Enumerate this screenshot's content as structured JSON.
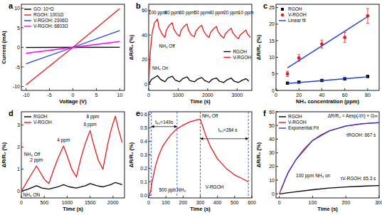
{
  "chart_data": [
    {
      "type": "line",
      "title": "a",
      "xlabel": "Voltage (V)",
      "ylabel": "Current (mA)",
      "xlim": [
        -11,
        11
      ],
      "ylim": [
        -11,
        11
      ],
      "xticks": [
        -10,
        -5,
        0,
        5,
        10
      ],
      "yticks": [
        -10,
        -5,
        0,
        5,
        10
      ],
      "legend": "upper left",
      "series": [
        {
          "name": "GO: 10⁹Ω",
          "color": "#000000",
          "x": [
            -10,
            0,
            10
          ],
          "values": [
            -0.02,
            0,
            0.02
          ]
        },
        {
          "name": "RGOH: 1001Ω",
          "color": "#e8191c",
          "x": [
            -10,
            0,
            10
          ],
          "values": [
            -9.6,
            0,
            9.9
          ]
        },
        {
          "name": "V-RGOH: 2306Ω",
          "color": "#1f3fd8",
          "x": [
            -10,
            0,
            10
          ],
          "values": [
            -4.2,
            0,
            4.3
          ]
        },
        {
          "name": "V-RGOH: 6803Ω",
          "color": "#ff00ff",
          "x": [
            -10,
            0,
            10
          ],
          "values": [
            -1.5,
            0,
            1.5
          ]
        }
      ]
    },
    {
      "type": "line",
      "title": "b",
      "xlabel": "Time (s)",
      "ylabel": "ΔR/R₀ (%)",
      "xlim": [
        0,
        3500
      ],
      "ylim": [
        -5,
        65
      ],
      "xticks": [
        0,
        1000,
        2000,
        3000
      ],
      "yticks": [
        0,
        20,
        40,
        60
      ],
      "legend": "center right",
      "annotations": [
        "100 ppm",
        "80 ppm",
        "60 ppm",
        "50 ppm",
        "40 ppm",
        "20 ppm",
        "10 ppm",
        "NH₃ Off",
        "NH₃ On"
      ],
      "series": [
        {
          "name": "RGOH",
          "color": "#000000",
          "x": [
            0,
            100,
            300,
            400,
            550,
            650,
            800,
            900,
            1050,
            1150,
            1300,
            1400,
            1550,
            1650,
            1800,
            1900,
            2050,
            2150,
            2300,
            2400,
            2550,
            2650,
            2800,
            2900,
            3050,
            3150,
            3300,
            3400
          ],
          "values": [
            0,
            4,
            7,
            4,
            2,
            5,
            6.5,
            3.5,
            2,
            4.5,
            6,
            3,
            2,
            4,
            5.5,
            3,
            1.5,
            4,
            5,
            2.5,
            1.5,
            3.5,
            5,
            2.5,
            1.5,
            3,
            4.5,
            2.5
          ]
        },
        {
          "name": "V-RGOH",
          "color": "#e8191c",
          "x": [
            0,
            50,
            120,
            200,
            300,
            350,
            450,
            550,
            600,
            700,
            800,
            850,
            950,
            1050,
            1100,
            1200,
            1300,
            1350,
            1450,
            1550,
            1600,
            1700,
            1800,
            1850,
            1950,
            2050,
            2100,
            2200,
            2300,
            2350,
            2450,
            2550,
            2600,
            2700,
            2800,
            2850,
            2950,
            3050,
            3100,
            3200,
            3300,
            3350,
            3450
          ],
          "values": [
            0,
            25,
            42,
            50,
            53,
            46,
            41,
            38,
            44,
            48,
            50,
            45,
            41,
            39,
            44,
            47,
            49,
            44,
            40,
            38.5,
            43,
            46,
            48,
            44,
            40,
            38,
            42,
            45,
            47,
            43,
            39.5,
            37.5,
            41,
            43.5,
            45.5,
            42,
            39,
            37,
            40,
            42,
            44,
            41,
            38
          ]
        }
      ]
    },
    {
      "type": "scatter",
      "title": "c",
      "xlabel": "NH₃ concentration (ppm)",
      "ylabel": "ΔR/R₀ (%)",
      "xlim": [
        0,
        90
      ],
      "ylim": [
        0,
        26
      ],
      "xticks": [
        0,
        20,
        40,
        60,
        80
      ],
      "yticks": [
        0,
        5,
        10,
        15,
        20,
        25
      ],
      "legend": "upper left",
      "series": [
        {
          "name": "RGOH",
          "color": "#000000",
          "type": "scatter",
          "marker": "square",
          "x": [
            10,
            20,
            40,
            60,
            80
          ],
          "values": [
            2.2,
            2.5,
            3.0,
            3.5,
            4.2
          ],
          "errors": [
            0.2,
            0.2,
            0.3,
            0.3,
            0.3
          ]
        },
        {
          "name": "V-RGOH",
          "color": "#e8191c",
          "type": "scatter",
          "marker": "circle",
          "x": [
            10,
            20,
            40,
            60,
            80
          ],
          "values": [
            5,
            9.8,
            14,
            16,
            22.5
          ],
          "errors": [
            0.8,
            1,
            1.2,
            1.5,
            2.2
          ]
        },
        {
          "name": "Linear fit",
          "color": "#1f3fd8",
          "type": "line",
          "line_style": "solid",
          "x": [
            10,
            80
          ],
          "values": [
            6.8,
            22.3
          ]
        },
        {
          "name": "Linear fit",
          "color": "#1f3fd8",
          "type": "line",
          "line_style": "solid",
          "x": [
            10,
            80
          ],
          "values": [
            2.1,
            4.1
          ]
        }
      ]
    },
    {
      "type": "line",
      "title": "d",
      "xlabel": "Time (s)",
      "ylabel": "ΔR/R₀ (%)",
      "xlim": [
        0,
        2250
      ],
      "ylim": [
        -0.3,
        3.6
      ],
      "xticks": [
        0,
        500,
        1000,
        1500,
        2000
      ],
      "yticks": [
        0,
        1,
        2,
        3
      ],
      "legend": "upper left",
      "annotations": [
        "2 ppm",
        "4 ppm",
        "6 ppm",
        "8 ppm",
        "NH₃ Off",
        "NH₃ ON"
      ],
      "series": [
        {
          "name": "RGOH",
          "color": "#000000",
          "x": [
            0,
            150,
            330,
            450,
            600,
            800,
            920,
            1050,
            1200,
            1400,
            1500,
            1650,
            1780,
            1950,
            2050,
            2200
          ],
          "values": [
            0,
            0.1,
            0.25,
            0.15,
            0.1,
            0.2,
            0.3,
            0.2,
            0.15,
            0.25,
            0.35,
            0.25,
            0.2,
            0.3,
            0.4,
            0.3
          ]
        },
        {
          "name": "V-RGOH",
          "color": "#e8191c",
          "x": [
            0,
            100,
            200,
            330,
            400,
            500,
            600,
            700,
            800,
            920,
            1000,
            1100,
            1200,
            1300,
            1400,
            1500,
            1580,
            1680,
            1780,
            1880,
            1960,
            2050,
            2120,
            2200
          ],
          "values": [
            0,
            0.35,
            0.7,
            1.15,
            0.9,
            0.55,
            0.35,
            0.95,
            1.5,
            2.05,
            1.6,
            1.0,
            0.65,
            1.5,
            2.2,
            2.75,
            2.1,
            1.4,
            1.0,
            2.1,
            2.8,
            3.4,
            2.8,
            2.2
          ]
        }
      ]
    },
    {
      "type": "line",
      "title": "e",
      "xlabel": "Time (s)",
      "ylabel": "ΔR/R₀ (%)",
      "xlim": [
        0,
        600
      ],
      "ylim": [
        -0.02,
        0.62
      ],
      "xticks": [
        0,
        100,
        200,
        300,
        400,
        500,
        600
      ],
      "yticks": [
        {
          "value": 0,
          "label": "0.0"
        },
        0.1,
        0.2,
        0.3,
        0.4,
        0.5,
        0.6
      ],
      "annotations": [
        "t₉₀=149s",
        "NH₃ Off",
        "t₉₀=284 s",
        "500 ppb NH₃",
        "V-RGOH"
      ],
      "vlines": [
        15,
        165,
        300,
        580
      ],
      "series": [
        {
          "name": "V-RGOH",
          "color": "#e8191c",
          "x": [
            0,
            10,
            20,
            40,
            60,
            80,
            100,
            130,
            160,
            200,
            240,
            280,
            300,
            310,
            330,
            360,
            400,
            450,
            500,
            550,
            580
          ],
          "values": [
            0,
            0.02,
            0.1,
            0.22,
            0.3,
            0.36,
            0.4,
            0.45,
            0.49,
            0.52,
            0.545,
            0.56,
            0.565,
            0.53,
            0.45,
            0.36,
            0.27,
            0.2,
            0.15,
            0.12,
            0.1
          ]
        }
      ]
    },
    {
      "type": "line",
      "title": "f",
      "xlabel": "Time (s)",
      "ylabel": "ΔR/R₀ (%)",
      "xlim": [
        -10,
        300
      ],
      "ylim": [
        -3,
        60
      ],
      "xticks": [
        0,
        100,
        200,
        300
      ],
      "yticks": [
        0,
        10,
        20,
        30,
        40,
        50,
        60
      ],
      "legend": "upper left",
      "annotations": [
        "ΔR/R₀ = Aexp(-t/τ) + G∞",
        "τRGOH: 667 s",
        "τV-RGOH: 65.3 s",
        "100 ppm NH₃ on"
      ],
      "series": [
        {
          "name": "RGOH",
          "color": "#000000",
          "x": [
            0,
            10,
            20,
            50,
            100,
            150,
            200,
            250,
            300
          ],
          "values": [
            0,
            0.2,
            0.6,
            1.5,
            3,
            4.2,
            5,
            5.6,
            6
          ]
        },
        {
          "name": "V-RGOH",
          "color": "#e8191c",
          "x": [
            0,
            10,
            20,
            30,
            50,
            75,
            100,
            125,
            150,
            200,
            250,
            300
          ],
          "values": [
            0,
            6,
            12,
            17,
            25,
            33,
            39,
            43,
            46,
            49.5,
            51.2,
            52
          ]
        },
        {
          "name": "Exponential Fit",
          "color": "#1f3fd8",
          "line_style": "solid",
          "x": [
            5,
            25,
            50,
            100,
            150,
            200,
            250,
            300
          ],
          "values": [
            3,
            15,
            25,
            39,
            46,
            49.6,
            51.3,
            52.1
          ]
        }
      ]
    }
  ]
}
